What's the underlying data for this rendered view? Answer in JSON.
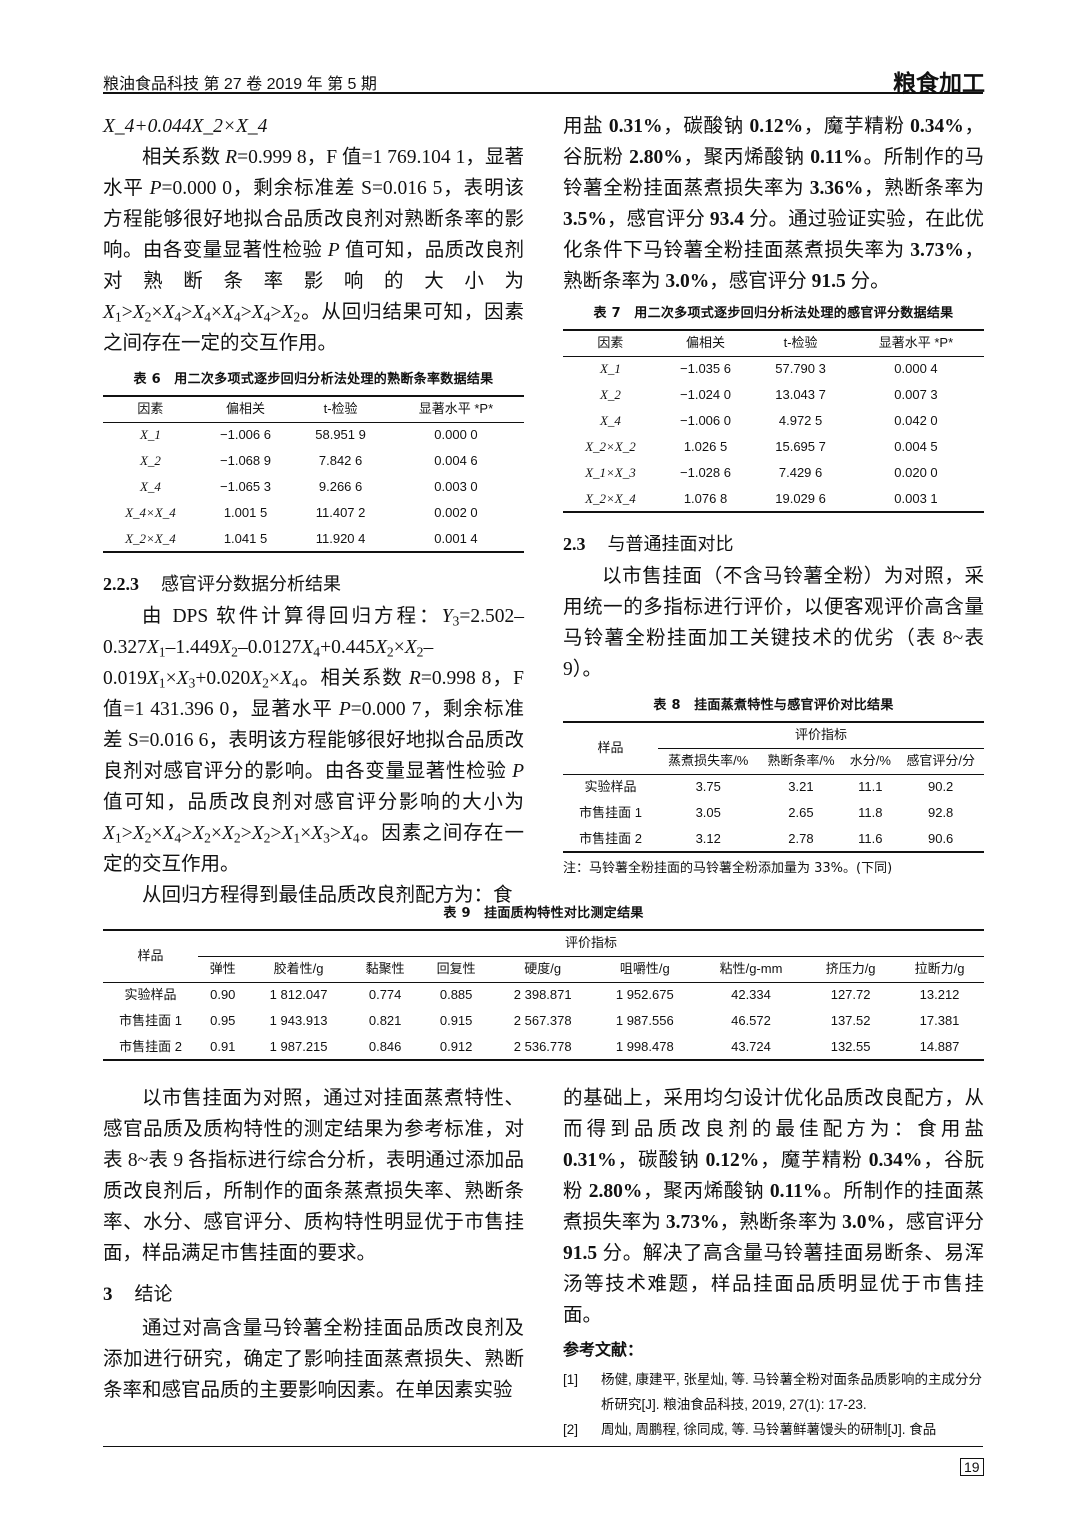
{
  "header": {
    "journal": "粮油食品科技 第 27 卷 2019 年 第 5 期",
    "section": "粮食加工"
  },
  "left_top": {
    "p0": "X_4+0.044X_2×X_4",
    "p1": "相关系数 *R*=0.999 8，F 值=1 769.104 1，显著水平 *P*=0.000 0，剩余标准差 S=0.016 5，表明该方程能够很好地拟合品质改良剂对熟断条率的影响。由各变量显著性检验 *P* 值可知，品质改良剂对熟断条率影响的大小为 X_1>X_2×X_4>X_4×X_4>X_4>X_2。从回归结果可知，因素之间存在一定的交互作用。"
  },
  "table6": {
    "caption": "表 6　用二次多项式逐步回归分析法处理的熟断条率数据结果",
    "headers": [
      "因素",
      "偏相关",
      "t-检验",
      "显著水平 *P*"
    ],
    "rows": [
      [
        "X_1",
        "−1.006 6",
        "58.951 9",
        "0.000 0"
      ],
      [
        "X_2",
        "−1.068 9",
        "7.842 6",
        "0.004 6"
      ],
      [
        "X_4",
        "−1.065 3",
        "9.266 6",
        "0.003 0"
      ],
      [
        "X_4×X_4",
        "1.001 5",
        "11.407 2",
        "0.002 0"
      ],
      [
        "X_2×X_4",
        "1.041 5",
        "11.920 4",
        "0.001 4"
      ]
    ]
  },
  "sec223": {
    "num": "2.2.3",
    "title": "感官评分数据分析结果",
    "p1": "由 DPS 软件计算得回归方程：Y_3=2.502–0.327X_1–1.449X_2–0.0127X_4+0.445X_2×X_2–0.019X_1×X_3+0.020X_2×X_4。相关系数 *R*=0.998 8，F 值=1 431.396 0，显著水平 *P*=0.000 7，剩余标准差 S=0.016 6，表明该方程能够很好地拟合品质改良剂对感官评分的影响。由各变量显著性检验 *P* 值可知，品质改良剂对感官评分影响的大小为 X_1>X_2×X_4>X_2×X_2>X_2>X_1×X_3>X_4。因素之间存在一定的交互作用。",
    "p2": "从回归方程得到最佳品质改良剂配方为：食"
  },
  "right_top": {
    "p": "用盐 **0.31%**，碳酸钠 **0.12%**，魔芋精粉 **0.34%**，谷朊粉 **2.80%**，聚丙烯酸钠 **0.11%**。所制作的马铃薯全粉挂面蒸煮损失率为 **3.36%**，熟断条率为 **3.5%**，感官评分 **93.4** 分。通过验证实验，在此优化条件下马铃薯全粉挂面蒸煮损失率为 **3.73%**，熟断条率为 **3.0%**，感官评分 **91.5** 分。"
  },
  "table7": {
    "caption": "表 7　用二次多项式逐步回归分析法处理的感官评分数据结果",
    "headers": [
      "因素",
      "偏相关",
      "t-检验",
      "显著水平 *P*"
    ],
    "rows": [
      [
        "X_1",
        "−1.035 6",
        "57.790 3",
        "0.000 4"
      ],
      [
        "X_2",
        "−1.024 0",
        "13.043 7",
        "0.007 3"
      ],
      [
        "X_4",
        "−1.006 0",
        "4.972 5",
        "0.042 0"
      ],
      [
        "X_2×X_2",
        "1.026 5",
        "15.695 7",
        "0.004 5"
      ],
      [
        "X_1×X_3",
        "−1.028 6",
        "7.429 6",
        "0.020 0"
      ],
      [
        "X_2×X_4",
        "1.076 8",
        "19.029 6",
        "0.003 1"
      ]
    ]
  },
  "sec23": {
    "num": "2.3",
    "title": "与普通挂面对比",
    "p": "以市售挂面（不含马铃薯全粉）为对照，采用统一的多指标进行评价，以便客观评价高含量马铃薯全粉挂面加工关键技术的优劣（表 8~表 9）。"
  },
  "table8": {
    "caption": "表 8　挂面蒸煮特性与感官评价对比结果",
    "sample_header": "样品",
    "group_header": "评价指标",
    "headers": [
      "蒸煮损失率/%",
      "熟断条率/%",
      "水分/%",
      "感官评分/分"
    ],
    "rows": [
      [
        "实验样品",
        "3.75",
        "3.21",
        "11.1",
        "90.2"
      ],
      [
        "市售挂面 1",
        "3.05",
        "2.65",
        "11.8",
        "92.8"
      ],
      [
        "市售挂面 2",
        "3.12",
        "2.78",
        "11.6",
        "90.6"
      ]
    ],
    "note": "注：马铃薯全粉挂面的马铃薯全粉添加量为 33%。(下同)"
  },
  "table9": {
    "caption": "表 9　挂面质构特性对比测定结果",
    "sample_header": "样品",
    "group_header": "评价指标",
    "headers": [
      "弹性",
      "胶着性/g",
      "黏聚性",
      "回复性",
      "硬度/g",
      "咀嚼性/g",
      "粘性/g-mm",
      "挤压力/g",
      "拉断力/g"
    ],
    "rows": [
      [
        "实验样品",
        "0.90",
        "1 812.047",
        "0.774",
        "0.885",
        "2 398.871",
        "1 952.675",
        "42.334",
        "127.72",
        "13.212"
      ],
      [
        "市售挂面 1",
        "0.95",
        "1 943.913",
        "0.821",
        "0.915",
        "2 567.378",
        "1 987.556",
        "46.572",
        "137.52",
        "17.381"
      ],
      [
        "市售挂面 2",
        "0.91",
        "1 987.215",
        "0.846",
        "0.912",
        "2 536.778",
        "1 998.478",
        "43.724",
        "132.55",
        "14.887"
      ]
    ]
  },
  "left_bottom": {
    "p1": "以市售挂面为对照，通过对挂面蒸煮特性、感官品质及质构特性的测定结果为参考标准，对表 8~表 9 各指标进行综合分析，表明通过添加品质改良剂后，所制作的面条蒸煮损失率、熟断条率、水分、感官评分、质构特性明显优于市售挂面，样品满足市售挂面的要求。",
    "sec_num": "3",
    "sec_title": "结论",
    "p2": "通过对高含量马铃薯全粉挂面品质改良剂及添加进行研究，确定了影响挂面蒸煮损失、熟断条率和感官品质的主要影响因素。在单因素实验"
  },
  "right_bottom": {
    "p": "的基础上，采用均匀设计优化品质改良配方，从而得到品质改良剂的最佳配方为：食用盐 **0.31%**，碳酸钠 **0.12%**，魔芋精粉 **0.34%**，谷朊粉 **2.80%**，聚丙烯酸钠 **0.11%**。所制作的挂面蒸煮损失率为 **3.73%**，熟断条率为 **3.0%**，感官评分 **91.5** 分。解决了高含量马铃薯挂面易断条、易浑汤等技术难题，样品挂面品质明显优于市售挂面。",
    "refs_title": "参考文献：",
    "refs": [
      {
        "n": "[1]",
        "t": "杨健, 康建平, 张星灿, 等. 马铃薯全粉对面条品质影响的主成分分析研究[J]. 粮油食品科技, 2019, 27(1): 17-23."
      },
      {
        "n": "[2]",
        "t": "周灿, 周鹏程, 徐同成, 等. 马铃薯鲜薯馒头的研制[J]. 食品"
      }
    ]
  },
  "page_number": "19"
}
